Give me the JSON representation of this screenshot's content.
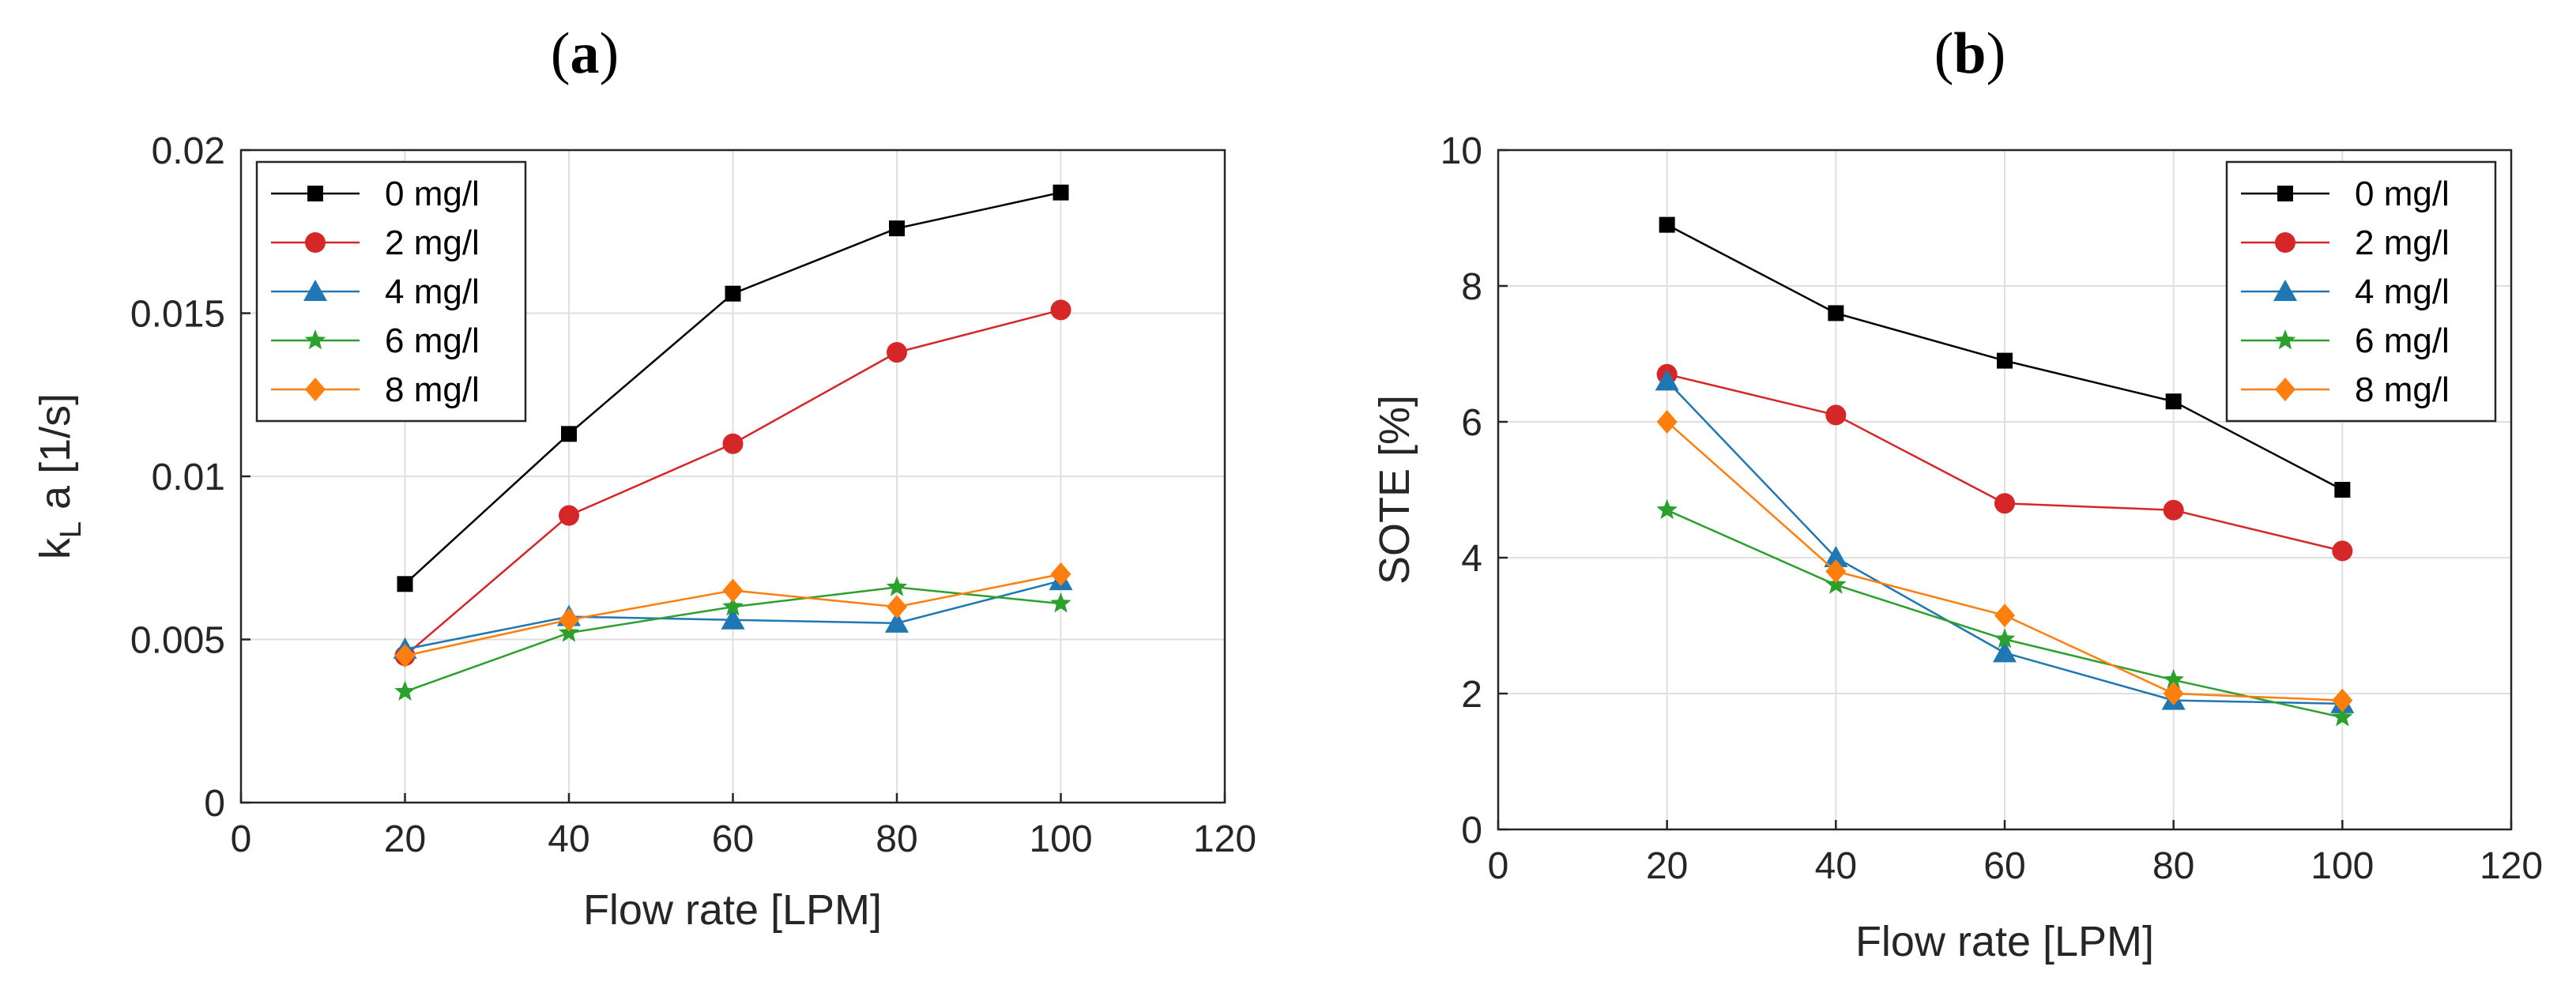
{
  "chart_data": [
    {
      "type": "line",
      "panel_label": "a",
      "xlabel": "Flow rate [LPM]",
      "ylabel_main": "k",
      "ylabel_sub": "L",
      "ylabel_rest": " a [1/s]",
      "xlim": [
        0,
        120
      ],
      "ylim": [
        0,
        0.02
      ],
      "xticks": [
        0,
        20,
        40,
        60,
        80,
        100,
        120
      ],
      "xtick_labels": [
        "0",
        "20",
        "40",
        "60",
        "80",
        "100",
        "120"
      ],
      "yticks": [
        0,
        0.005,
        0.01,
        0.015,
        0.02
      ],
      "ytick_labels": [
        "0",
        "0.005",
        "0.01",
        "0.015",
        "0.02"
      ],
      "grid": true,
      "legend_position": "top-left",
      "x": [
        20,
        40,
        60,
        80,
        100
      ],
      "series": [
        {
          "name": "0 mg/l",
          "color": "#000000",
          "marker": "square",
          "values": [
            0.0067,
            0.0113,
            0.0156,
            0.0176,
            0.0187
          ]
        },
        {
          "name": "2 mg/l",
          "color": "#d62728",
          "marker": "circle",
          "values": [
            0.0045,
            0.0088,
            0.011,
            0.0138,
            0.0151
          ]
        },
        {
          "name": "4 mg/l",
          "color": "#1f77b4",
          "marker": "triangle",
          "values": [
            0.0047,
            0.0057,
            0.0056,
            0.0055,
            0.0068
          ]
        },
        {
          "name": "6 mg/l",
          "color": "#2ca02c",
          "marker": "star",
          "values": [
            0.0034,
            0.0052,
            0.006,
            0.0066,
            0.0061
          ]
        },
        {
          "name": "8 mg/l",
          "color": "#ff7f0e",
          "marker": "diamond",
          "values": [
            0.0045,
            0.0056,
            0.0065,
            0.006,
            0.007
          ]
        }
      ]
    },
    {
      "type": "line",
      "panel_label": "b",
      "xlabel": "Flow rate [LPM]",
      "ylabel": "SOTE [%]",
      "xlim": [
        0,
        120
      ],
      "ylim": [
        0,
        10
      ],
      "xticks": [
        0,
        20,
        40,
        60,
        80,
        100,
        120
      ],
      "xtick_labels": [
        "0",
        "20",
        "40",
        "60",
        "80",
        "100",
        "120"
      ],
      "yticks": [
        0,
        2,
        4,
        6,
        8,
        10
      ],
      "ytick_labels": [
        "0",
        "2",
        "4",
        "6",
        "8",
        "10"
      ],
      "grid": true,
      "legend_position": "top-right",
      "x": [
        20,
        40,
        60,
        80,
        100
      ],
      "series": [
        {
          "name": "0 mg/l",
          "color": "#000000",
          "marker": "square",
          "values": [
            8.9,
            7.6,
            6.9,
            6.3,
            5.0
          ]
        },
        {
          "name": "2 mg/l",
          "color": "#d62728",
          "marker": "circle",
          "values": [
            6.7,
            6.1,
            4.8,
            4.7,
            4.1
          ]
        },
        {
          "name": "4 mg/l",
          "color": "#1f77b4",
          "marker": "triangle",
          "values": [
            6.6,
            4.0,
            2.6,
            1.9,
            1.85
          ]
        },
        {
          "name": "6 mg/l",
          "color": "#2ca02c",
          "marker": "star",
          "values": [
            4.7,
            3.6,
            2.8,
            2.2,
            1.65
          ]
        },
        {
          "name": "8 mg/l",
          "color": "#ff7f0e",
          "marker": "diamond",
          "values": [
            6.0,
            3.8,
            3.15,
            2.0,
            1.9
          ]
        }
      ]
    }
  ]
}
